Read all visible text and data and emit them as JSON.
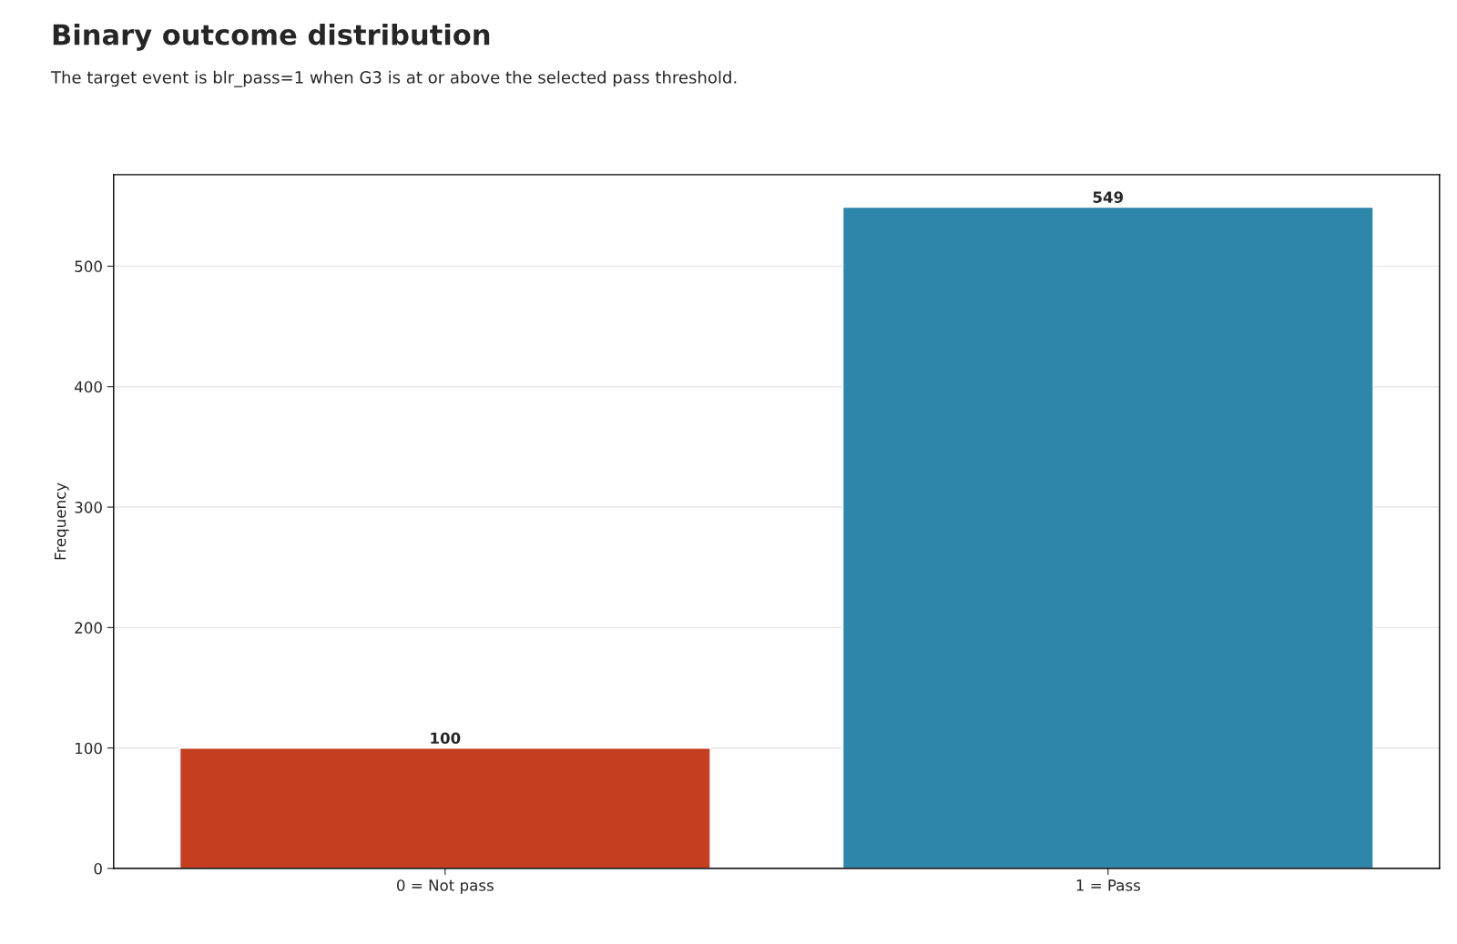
{
  "chart_data": {
    "type": "bar",
    "title": "Binary outcome distribution",
    "subtitle": "The target event is blr_pass=1 when G3 is at or above the selected pass threshold.",
    "ylabel": "Frequency",
    "categories": [
      "0 = Not pass",
      "1 = Pass"
    ],
    "values": [
      100,
      549
    ],
    "colors": [
      "#c43e1f",
      "#2e86ab"
    ],
    "ylim": [
      0,
      576
    ],
    "yticks": [
      0,
      100,
      200,
      300,
      400,
      500
    ],
    "grid": "y",
    "data_labels": true
  }
}
